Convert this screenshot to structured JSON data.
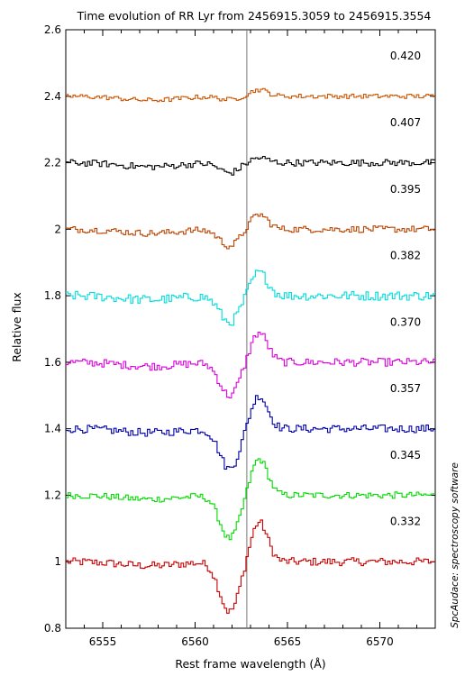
{
  "chart_data": {
    "type": "line",
    "title": "Time evolution of RR Lyr from 2456915.3059 to 2456915.3554",
    "xlabel": "Rest frame wavelength (Å)",
    "ylabel": "Relative flux",
    "credit": "SpcAudace: spectroscopy software",
    "xlim": [
      6553,
      6573
    ],
    "ylim": [
      0.8,
      2.6
    ],
    "xticks": [
      6555,
      6560,
      6565,
      6570
    ],
    "xtick_labels": [
      "6555",
      "6560",
      "6565",
      "6570"
    ],
    "yticks": [
      0.8,
      1.0,
      1.2,
      1.4,
      1.6,
      1.8,
      2.0,
      2.2,
      2.4,
      2.6
    ],
    "ytick_labels": [
      "0.8",
      "1",
      "1.2",
      "1.4",
      "1.6",
      "1.8",
      "2",
      "2.2",
      "2.4",
      "2.6"
    ],
    "reference_line_x": 6562.8,
    "grid": false,
    "series": [
      {
        "name": "0.332",
        "color": "#cc0000",
        "offset": 1.0,
        "depth": 0.15,
        "emission": 0.12,
        "noise": 0.012
      },
      {
        "name": "0.345",
        "color": "#00dd00",
        "offset": 1.2,
        "depth": 0.13,
        "emission": 0.11,
        "noise": 0.01
      },
      {
        "name": "0.357",
        "color": "#0000aa",
        "offset": 1.4,
        "depth": 0.12,
        "emission": 0.1,
        "noise": 0.012
      },
      {
        "name": "0.370",
        "color": "#dd00dd",
        "offset": 1.6,
        "depth": 0.1,
        "emission": 0.09,
        "noise": 0.012
      },
      {
        "name": "0.382",
        "color": "#00dddd",
        "offset": 1.8,
        "depth": 0.08,
        "emission": 0.07,
        "noise": 0.014
      },
      {
        "name": "0.395",
        "color": "#bb4400",
        "offset": 2.0,
        "depth": 0.05,
        "emission": 0.045,
        "noise": 0.01
      },
      {
        "name": "0.407",
        "color": "#000000",
        "offset": 2.2,
        "depth": 0.03,
        "emission": 0.015,
        "noise": 0.01
      },
      {
        "name": "0.420",
        "color": "#cc5500",
        "offset": 2.4,
        "depth": 0.01,
        "emission": 0.02,
        "noise": 0.007
      }
    ]
  }
}
